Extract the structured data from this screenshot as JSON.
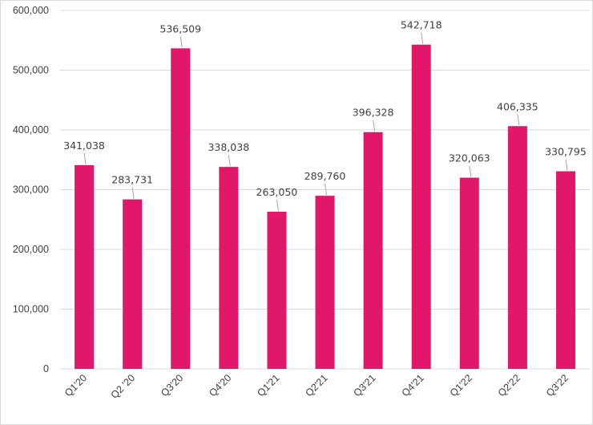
{
  "chart_data": {
    "type": "bar",
    "categories": [
      "Q1'20",
      "Q2 '20",
      "Q3'20",
      "Q4'20",
      "Q1'21",
      "Q2'21",
      "Q3'21",
      "Q4'21",
      "Q1'22",
      "Q2'22",
      "Q3'22"
    ],
    "values": [
      341038,
      283731,
      536509,
      338038,
      263050,
      289760,
      396328,
      542718,
      320063,
      406335,
      330795
    ],
    "data_labels": [
      "341,038",
      "283,731",
      "536,509",
      "338,038",
      "263,050",
      "289,760",
      "396,328",
      "542,718",
      "320,063",
      "406,335",
      "330,795"
    ],
    "y_ticks": [
      "0",
      "100,000",
      "200,000",
      "300,000",
      "400,000",
      "500,000",
      "600,000"
    ],
    "ylim": [
      0,
      600000
    ],
    "grid": true,
    "legend": "none",
    "bar_color": "#e0176b",
    "gridline_color": "#d9d9d9",
    "label_leader_color": "#a6a6a6"
  }
}
